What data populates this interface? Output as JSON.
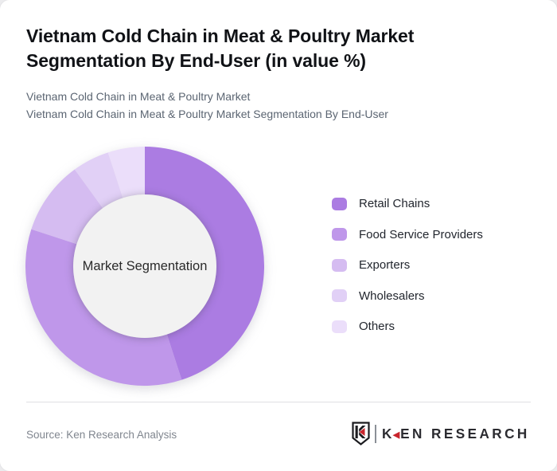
{
  "header": {
    "title": "Vietnam Cold Chain in Meat & Poultry Market Segmentation By End-User (in value %)",
    "subtitle_line1": "Vietnam Cold Chain in Meat & Poultry Market",
    "subtitle_line2": "Vietnam Cold Chain in Meat & Poultry Market Segmentation By End-User"
  },
  "chart_data": {
    "type": "pie",
    "variant": "donut",
    "title": "Vietnam Cold Chain in Meat & Poultry Market Segmentation By End-User (in value %)",
    "center_label": "Market Segmentation",
    "start_angle_deg": 0,
    "direction": "clockwise",
    "values_are_percent": true,
    "values_shown_on_chart": false,
    "legend_position": "right",
    "segments": [
      {
        "label": "Retail Chains",
        "value": 45,
        "color": "#ab7ce2"
      },
      {
        "label": "Food Service Providers",
        "value": 35,
        "color": "#bf97ea"
      },
      {
        "label": "Exporters",
        "value": 10,
        "color": "#d5bcf1"
      },
      {
        "label": "Wholesalers",
        "value": 5,
        "color": "#e1d0f6"
      },
      {
        "label": "Others",
        "value": 5,
        "color": "#ebdefa"
      }
    ],
    "inner_circle_color": "#f2f2f2"
  },
  "footer": {
    "source": "Source: Ken Research Analysis",
    "logo": {
      "shield_letter": "K",
      "brand_part1": "K",
      "brand_part2": "EN RESEARCH",
      "accent_color": "#c9252c"
    }
  }
}
